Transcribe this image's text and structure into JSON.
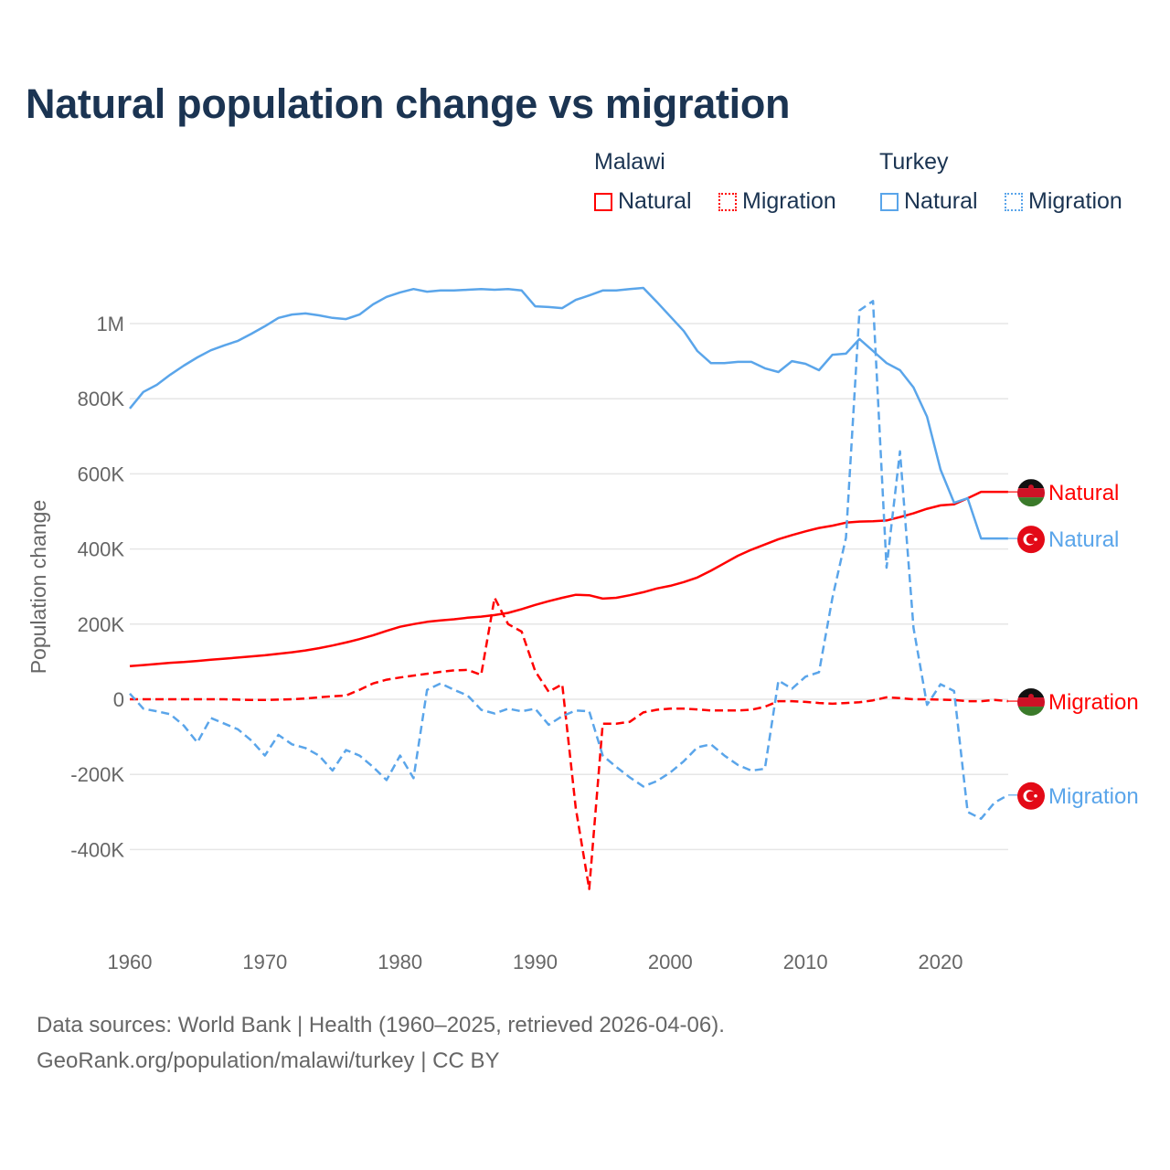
{
  "chart_data": {
    "type": "line",
    "title": "Natural population change vs migration",
    "xlabel": "",
    "ylabel": "Population change",
    "xlim": [
      1960,
      2025
    ],
    "ylim": [
      -500000,
      1100000
    ],
    "grid": true,
    "x_ticks": [
      "1960",
      "1970",
      "1980",
      "1990",
      "2000",
      "2010",
      "2020"
    ],
    "x_tick_values": [
      1960,
      1970,
      1980,
      1990,
      2000,
      2010,
      2020
    ],
    "y_ticks": [
      "-400K",
      "-200K",
      "0",
      "200K",
      "400K",
      "600K",
      "800K",
      "1M"
    ],
    "y_tick_values": [
      -400000,
      -200000,
      0,
      200000,
      400000,
      600000,
      800000,
      1000000
    ],
    "legend": {
      "placement": "top-right",
      "groups": [
        {
          "country": "Malawi",
          "items": [
            "Natural",
            "Migration"
          ]
        },
        {
          "country": "Turkey",
          "items": [
            "Natural",
            "Migration"
          ]
        }
      ]
    },
    "x": [
      1960,
      1961,
      1962,
      1963,
      1964,
      1965,
      1966,
      1967,
      1968,
      1969,
      1970,
      1971,
      1972,
      1973,
      1974,
      1975,
      1976,
      1977,
      1978,
      1979,
      1980,
      1981,
      1982,
      1983,
      1984,
      1985,
      1986,
      1987,
      1988,
      1989,
      1990,
      1991,
      1992,
      1993,
      1994,
      1995,
      1996,
      1997,
      1998,
      1999,
      2000,
      2001,
      2002,
      2003,
      2004,
      2005,
      2006,
      2007,
      2008,
      2009,
      2010,
      2011,
      2012,
      2013,
      2014,
      2015,
      2016,
      2017,
      2018,
      2019,
      2020,
      2021,
      2022,
      2023,
      2024,
      2025
    ],
    "series": [
      {
        "name": "Natural",
        "country": "Malawi",
        "color": "#ff0000",
        "dash": "solid",
        "values": [
          88000,
          91000,
          94000,
          97000,
          99000,
          102000,
          105000,
          108000,
          111000,
          114000,
          117000,
          121000,
          125000,
          130000,
          136000,
          143000,
          151000,
          160000,
          170000,
          182000,
          193000,
          200000,
          206000,
          210000,
          213000,
          217000,
          220000,
          224000,
          230000,
          240000,
          251000,
          261000,
          270000,
          278000,
          277000,
          268000,
          270000,
          277000,
          285000,
          295000,
          302000,
          312000,
          324000,
          342000,
          362000,
          382000,
          398000,
          412000,
          426000,
          437000,
          447000,
          456000,
          462000,
          470000,
          473000,
          474000,
          476000,
          485000,
          495000,
          507000,
          516000,
          519000,
          535000,
          552000,
          552000,
          552000
        ],
        "end_label": "Natural"
      },
      {
        "name": "Migration",
        "country": "Malawi",
        "color": "#ff0000",
        "dash": "dashed",
        "values": [
          0,
          0,
          0,
          0,
          0,
          0,
          0,
          0,
          -1000,
          -2000,
          -2000,
          -1000,
          0,
          2000,
          5000,
          8000,
          10000,
          25000,
          42000,
          52000,
          58000,
          63000,
          68000,
          73000,
          77000,
          78000,
          65000,
          270000,
          200000,
          180000,
          75000,
          20000,
          40000,
          -290000,
          -505000,
          -65000,
          -65000,
          -60000,
          -35000,
          -28000,
          -25000,
          -25000,
          -27000,
          -30000,
          -30000,
          -30000,
          -28000,
          -20000,
          -5000,
          -5000,
          -7000,
          -10000,
          -12000,
          -10000,
          -8000,
          -3000,
          5000,
          3000,
          0,
          0,
          -1000,
          -2000,
          -5000,
          -5000,
          -2000,
          -5000
        ],
        "end_label": "Migration"
      },
      {
        "name": "Natural",
        "country": "Turkey",
        "color": "#5aa5ea",
        "dash": "solid",
        "values": [
          774000,
          818000,
          837000,
          864000,
          888000,
          910000,
          929000,
          942000,
          954000,
          973000,
          993000,
          1015000,
          1024000,
          1027000,
          1022000,
          1015000,
          1012000,
          1024000,
          1051000,
          1071000,
          1083000,
          1092000,
          1085000,
          1088000,
          1088000,
          1090000,
          1092000,
          1090000,
          1092000,
          1088000,
          1046000,
          1044000,
          1041000,
          1063000,
          1075000,
          1088000,
          1088000,
          1092000,
          1095000,
          1058000,
          1019000,
          980000,
          927000,
          895000,
          895000,
          898000,
          898000,
          881000,
          871000,
          900000,
          893000,
          876000,
          917000,
          920000,
          959000,
          927000,
          895000,
          876000,
          830000,
          752000,
          611000,
          523000,
          535000,
          428000,
          428000,
          428000
        ],
        "end_label": "Natural"
      },
      {
        "name": "Migration",
        "country": "Turkey",
        "color": "#5aa5ea",
        "dash": "dashed",
        "values": [
          15000,
          -25000,
          -32000,
          -40000,
          -70000,
          -115000,
          -50000,
          -65000,
          -80000,
          -110000,
          -150000,
          -95000,
          -120000,
          -130000,
          -150000,
          -190000,
          -135000,
          -150000,
          -180000,
          -215000,
          -150000,
          -210000,
          25000,
          42000,
          25000,
          10000,
          -28000,
          -38000,
          -25000,
          -32000,
          -25000,
          -68000,
          -45000,
          -30000,
          -32000,
          -150000,
          -180000,
          -208000,
          -232000,
          -218000,
          -195000,
          -165000,
          -128000,
          -120000,
          -150000,
          -175000,
          -190000,
          -185000,
          50000,
          28000,
          60000,
          72000,
          270000,
          430000,
          1035000,
          1060000,
          350000,
          660000,
          190000,
          -15000,
          40000,
          22000,
          -300000,
          -318000,
          -275000,
          -255000
        ],
        "end_label": "Migration"
      }
    ]
  },
  "legend_labels": {
    "malawi": "Malawi",
    "turkey": "Turkey",
    "natural": "Natural",
    "migration": "Migration"
  },
  "footer": {
    "line1": "Data sources: World Bank | Health (1960–2025, retrieved 2026-04-06).",
    "line2": "GeoRank.org/population/malawi/turkey | CC BY"
  },
  "colors": {
    "malawi": "#ff0000",
    "turkey": "#5aa5ea",
    "title": "#1b3452"
  }
}
